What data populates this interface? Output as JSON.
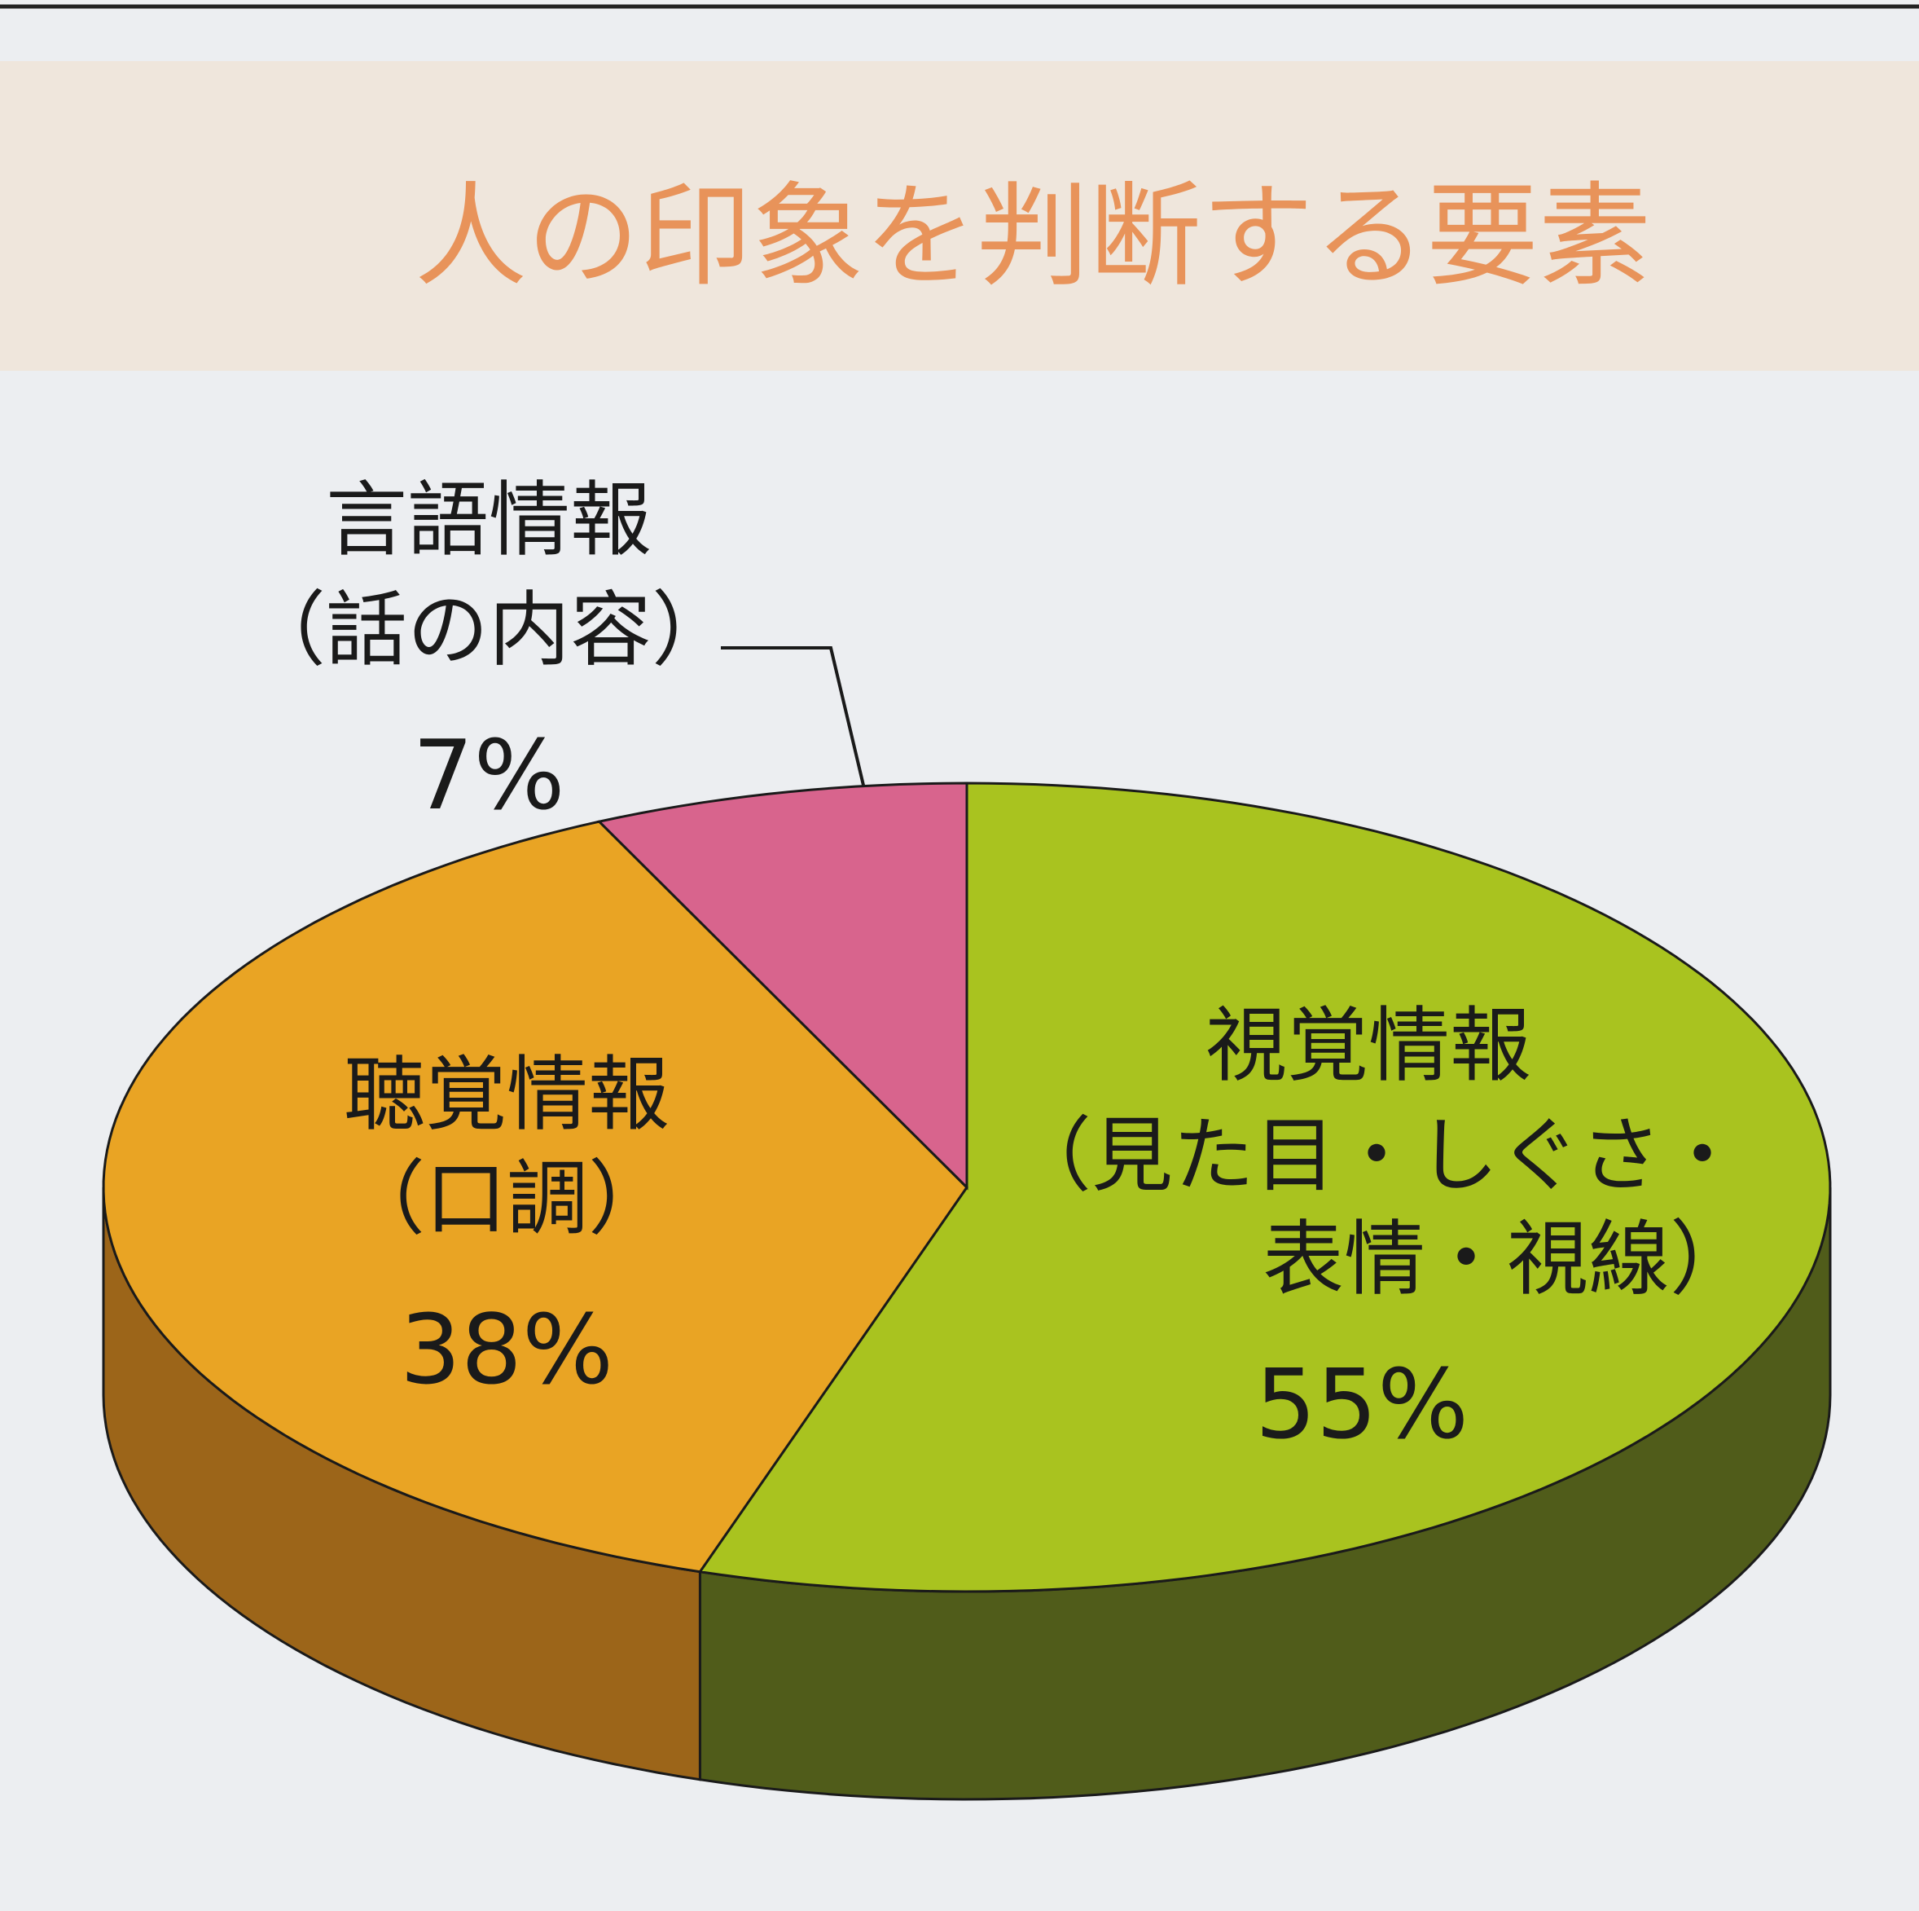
{
  "chart_data": {
    "type": "pie",
    "title": "人の印象を判断する要素",
    "categories": [
      "視覚情報",
      "聴覚情報",
      "言語情報"
    ],
    "details": [
      [
        "（見た目・しぐさ・",
        "表情・視線）"
      ],
      [
        "（口調）"
      ],
      [
        "（話の内容）"
      ]
    ],
    "values": [
      55,
      38,
      7
    ],
    "value_labels": [
      "55%",
      "38%",
      "7%"
    ],
    "colors": [
      "#a9c31f",
      "#e9a424",
      "#d8648d"
    ],
    "side_colors": [
      "#505c1a",
      "#9c6519",
      "#8a3552"
    ]
  }
}
